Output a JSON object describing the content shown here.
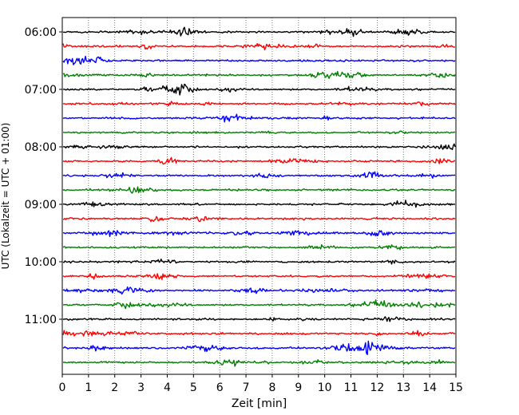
{
  "chart_data": {
    "type": "line",
    "xlabel": "Zeit  [min]",
    "ylabel": "UTC (Lokalzeit = UTC + 01:00)",
    "xlim": [
      0,
      15
    ],
    "x_ticks": [
      0,
      1,
      2,
      3,
      4,
      5,
      6,
      7,
      8,
      9,
      10,
      11,
      12,
      13,
      14,
      15
    ],
    "x_tick_labels": [
      "0",
      "1",
      "2",
      "3",
      "4",
      "5",
      "6",
      "7",
      "8",
      "9",
      "10",
      "11",
      "12",
      "13",
      "14",
      "15"
    ],
    "y_tick_labels": [
      "06:00",
      "07:00",
      "08:00",
      "09:00",
      "10:00",
      "11:00"
    ],
    "grid": "vertical-dotted",
    "trace_colors": [
      "#000000",
      "#ff0000",
      "#0000ff",
      "#008000"
    ],
    "traces": [
      {
        "start": "06:00",
        "color": "#000000"
      },
      {
        "start": "06:15",
        "color": "#ff0000"
      },
      {
        "start": "06:30",
        "color": "#0000ff"
      },
      {
        "start": "06:45",
        "color": "#008000"
      },
      {
        "start": "07:00",
        "color": "#000000"
      },
      {
        "start": "07:15",
        "color": "#ff0000"
      },
      {
        "start": "07:30",
        "color": "#0000ff"
      },
      {
        "start": "07:45",
        "color": "#008000"
      },
      {
        "start": "08:00",
        "color": "#000000"
      },
      {
        "start": "08:15",
        "color": "#ff0000"
      },
      {
        "start": "08:30",
        "color": "#0000ff"
      },
      {
        "start": "08:45",
        "color": "#008000"
      },
      {
        "start": "09:00",
        "color": "#000000"
      },
      {
        "start": "09:15",
        "color": "#ff0000"
      },
      {
        "start": "09:30",
        "color": "#0000ff"
      },
      {
        "start": "09:45",
        "color": "#008000"
      },
      {
        "start": "10:00",
        "color": "#000000"
      },
      {
        "start": "10:15",
        "color": "#ff0000"
      },
      {
        "start": "10:30",
        "color": "#0000ff"
      },
      {
        "start": "10:45",
        "color": "#008000"
      },
      {
        "start": "11:00",
        "color": "#000000"
      },
      {
        "start": "11:15",
        "color": "#ff0000"
      },
      {
        "start": "11:30",
        "color": "#0000ff"
      },
      {
        "start": "11:45",
        "color": "#008000"
      }
    ]
  }
}
